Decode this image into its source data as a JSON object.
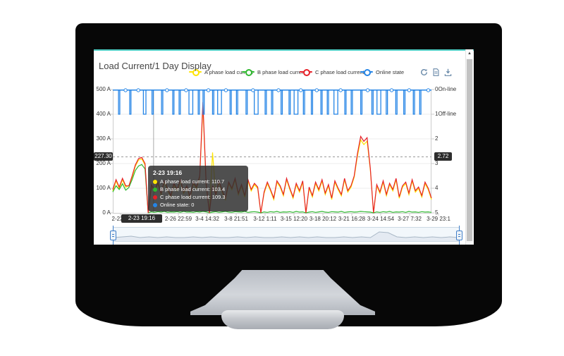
{
  "window": {
    "accent_line_color": "#4ecdc4"
  },
  "title": "Load Current/1 Day Display",
  "legend": {
    "items": [
      {
        "label": "A phase load current",
        "color": "#ffe400"
      },
      {
        "label": "B phase load current",
        "color": "#30b830"
      },
      {
        "label": "C phase load current",
        "color": "#e62129"
      },
      {
        "label": "Online state",
        "color": "#2585e6"
      }
    ]
  },
  "toolbar": {
    "color": "#6788a8",
    "icons": [
      "refresh-icon",
      "report-icon",
      "download-icon"
    ]
  },
  "tooltip": {
    "title": "2-23 19:16",
    "rows": [
      {
        "text": "A phase load current: 110.7",
        "color": "#ffe400"
      },
      {
        "text": "B phase load current: 103.4",
        "color": "#30b830"
      },
      {
        "text": "C phase load current: 109.3",
        "color": "#e62129"
      },
      {
        "text": "Online state: 0",
        "color": "#2585e6"
      }
    ]
  },
  "chart_data": {
    "type": "line",
    "title": "Load Current/1 Day Display",
    "x": {
      "tick_labels": [
        "2-22 0:",
        "17",
        "2-26 22:59",
        "3-4 14:32",
        "3-8 21:51",
        "3-12 1:11",
        "3-15 12:20",
        "3-18 20:12",
        "3-21 16:28",
        "3-24 14:54",
        "3-27 7:32",
        "3-29 23:1"
      ],
      "pointer_tag": "2-23 19:16",
      "pointer_frac": 0.128
    },
    "y_left": {
      "labels": [
        "500 A",
        "400 A",
        "300 A",
        "200 A",
        "100 A",
        "0 A"
      ],
      "min": 0,
      "max": 500,
      "unit": "A"
    },
    "y_right": {
      "labels": [
        "0On-line",
        "1Off-line",
        "2",
        "3",
        "4",
        "5"
      ],
      "min": 0,
      "max": 5,
      "inverted": true
    },
    "markline": {
      "value": 227.3,
      "left_tag": "227.30",
      "right_value": 2.72,
      "right_tag": "2.72"
    },
    "series": [
      {
        "name": "A phase load current",
        "color": "#ffe400",
        "values": [
          89,
          129,
          99,
          134,
          104,
          111,
          144,
          189,
          214,
          219,
          194,
          0,
          109,
          84,
          119,
          74,
          124,
          94,
          64,
          114,
          89,
          129,
          79,
          104,
          59,
          119,
          99,
          144,
          430,
          114,
          0,
          245,
          69,
          124,
          84,
          54,
          119,
          94,
          134,
          74,
          109,
          64,
          129,
          89,
          114,
          99,
          0,
          79,
          119,
          89,
          54,
          124,
          104,
          69,
          134,
          94,
          59,
          114,
          84,
          124,
          0,
          99,
          64,
          119,
          89,
          129,
          74,
          109,
          54,
          124,
          94,
          69,
          134,
          84,
          104,
          144,
          230,
          296,
          277,
          291,
          174,
          0,
          109,
          79,
          124,
          69,
          114,
          89,
          134,
          59,
          104,
          119,
          74,
          129,
          84,
          99,
          64,
          119,
          94,
          54
        ]
      },
      {
        "name": "B phase load current",
        "color": "#30b830",
        "values": [
          85,
          110,
          95,
          118,
          92,
          103,
          135,
          172,
          190,
          196,
          178,
          0,
          4,
          2,
          5,
          3,
          6,
          2,
          4,
          3,
          5,
          2,
          6,
          3,
          4,
          2,
          5,
          3,
          6,
          4,
          0,
          3,
          5,
          2,
          4,
          6,
          3,
          2,
          5,
          4,
          3,
          6,
          2,
          4,
          5,
          3,
          0,
          4,
          2,
          5,
          3,
          6,
          2,
          4,
          3,
          5,
          2,
          6,
          3,
          4,
          0,
          3,
          5,
          2,
          4,
          6,
          3,
          2,
          5,
          4,
          3,
          6,
          2,
          4,
          5,
          3,
          4,
          6,
          5,
          4,
          3,
          0,
          4,
          2,
          5,
          3,
          6,
          2,
          4,
          3,
          5,
          2,
          6,
          3,
          4,
          2,
          5,
          3,
          4,
          2
        ]
      },
      {
        "name": "C phase load current",
        "color": "#e62129",
        "values": [
          95,
          135,
          105,
          140,
          110,
          109,
          150,
          195,
          220,
          225,
          200,
          0,
          115,
          90,
          125,
          80,
          130,
          100,
          70,
          120,
          95,
          135,
          85,
          110,
          65,
          125,
          105,
          150,
          449,
          120,
          0,
          110,
          75,
          130,
          90,
          60,
          125,
          100,
          140,
          80,
          115,
          70,
          135,
          95,
          120,
          105,
          0,
          85,
          125,
          95,
          60,
          130,
          110,
          75,
          140,
          100,
          65,
          120,
          90,
          130,
          0,
          105,
          70,
          125,
          95,
          135,
          80,
          115,
          60,
          130,
          100,
          75,
          140,
          90,
          110,
          150,
          240,
          310,
          290,
          305,
          180,
          0,
          115,
          85,
          130,
          75,
          120,
          95,
          140,
          65,
          110,
          125,
          80,
          135,
          90,
          105,
          70,
          125,
          100,
          60
        ]
      },
      {
        "name": "Online state",
        "color": "#2585e6",
        "baseline": 0,
        "dips": [
          [
            0.02,
            0.002
          ],
          [
            0.055,
            0.002
          ],
          [
            0.1,
            0.004
          ],
          [
            0.125,
            0.002
          ],
          [
            0.155,
            0.002
          ],
          [
            0.19,
            0.002
          ],
          [
            0.21,
            0.002
          ],
          [
            0.245,
            0.006
          ],
          [
            0.27,
            0.002
          ],
          [
            0.285,
            0.002
          ],
          [
            0.315,
            0.002
          ],
          [
            0.335,
            0.006
          ],
          [
            0.37,
            0.002
          ],
          [
            0.39,
            0.002
          ],
          [
            0.42,
            0.002
          ],
          [
            0.45,
            0.006
          ],
          [
            0.48,
            0.002
          ],
          [
            0.5,
            0.002
          ],
          [
            0.53,
            0.002
          ],
          [
            0.555,
            0.002
          ],
          [
            0.575,
            0.006
          ],
          [
            0.6,
            0.002
          ],
          [
            0.625,
            0.002
          ],
          [
            0.655,
            0.002
          ],
          [
            0.675,
            0.002
          ],
          [
            0.7,
            0.006
          ],
          [
            0.73,
            0.002
          ],
          [
            0.75,
            0.002
          ],
          [
            0.78,
            0.002
          ],
          [
            0.815,
            0.002
          ],
          [
            0.835,
            0.006
          ],
          [
            0.86,
            0.002
          ],
          [
            0.89,
            0.002
          ],
          [
            0.915,
            0.002
          ],
          [
            0.945,
            0.002
          ],
          [
            0.965,
            0.002
          ]
        ],
        "markers": [
          0.04,
          0.08,
          0.17,
          0.23,
          0.3,
          0.355,
          0.44,
          0.52,
          0.59,
          0.64,
          0.715,
          0.8,
          0.875,
          0.93,
          0.99
        ]
      }
    ],
    "slider": {
      "profile": [
        3,
        4,
        5,
        3,
        4,
        3,
        4,
        3,
        3,
        4,
        3,
        4,
        3,
        3,
        4,
        3,
        4,
        3,
        3,
        4,
        3,
        4,
        3,
        4,
        3,
        3,
        4,
        3,
        4,
        3,
        11,
        10,
        4,
        3,
        4,
        3,
        4,
        3,
        4,
        3
      ]
    }
  }
}
